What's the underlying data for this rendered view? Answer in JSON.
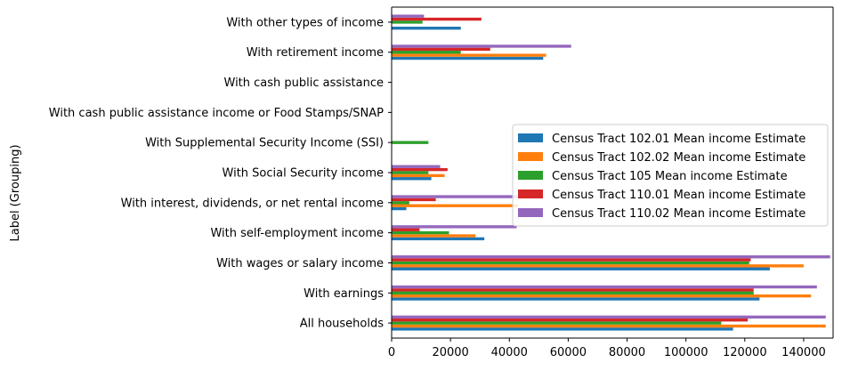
{
  "chart_data": {
    "type": "bar",
    "orientation": "horizontal",
    "title": "",
    "xlabel": "",
    "ylabel": "Label (Grouping)",
    "xlim": [
      0,
      150000
    ],
    "x_ticks": [
      0,
      20000,
      40000,
      60000,
      80000,
      100000,
      120000,
      140000
    ],
    "x_tick_labels": [
      "0",
      "20000",
      "40000",
      "60000",
      "80000",
      "100000",
      "120000",
      "140000"
    ],
    "grid": false,
    "legend_position": "center-right",
    "categories": [
      "All households",
      "With earnings",
      "With wages or salary income",
      "With self-employment income",
      "With interest, dividends, or net rental income",
      "With Social Security income",
      "With Supplemental Security Income (SSI)",
      "With cash public assistance income or Food Stamps/SNAP",
      "With cash public assistance",
      "With retirement income",
      "With other types of income"
    ],
    "series": [
      {
        "name": "Census Tract 102.01 Mean income Estimate",
        "color": "#1f77b4",
        "values": [
          116000,
          125000,
          128500,
          31500,
          5000,
          13500,
          0,
          0,
          0,
          51500,
          23500
        ]
      },
      {
        "name": "Census Tract 102.02 Mean income Estimate",
        "color": "#ff7f0e",
        "values": [
          147500,
          142500,
          140000,
          28500,
          43000,
          18000,
          0,
          0,
          0,
          52500,
          0
        ]
      },
      {
        "name": "Census Tract 105 Mean income Estimate",
        "color": "#2ca02c",
        "values": [
          112000,
          123000,
          121500,
          19500,
          6000,
          12500,
          12500,
          0,
          0,
          23500,
          10500
        ]
      },
      {
        "name": "Census Tract 110.01 Mean income Estimate",
        "color": "#d62728",
        "values": [
          121000,
          123000,
          122000,
          9500,
          15000,
          19000,
          0,
          0,
          0,
          33500,
          30500
        ]
      },
      {
        "name": "Census Tract 110.02 Mean income Estimate",
        "color": "#9467bd",
        "values": [
          147500,
          144500,
          149000,
          42500,
          43000,
          16500,
          0,
          0,
          0,
          61000,
          11000
        ]
      }
    ]
  }
}
